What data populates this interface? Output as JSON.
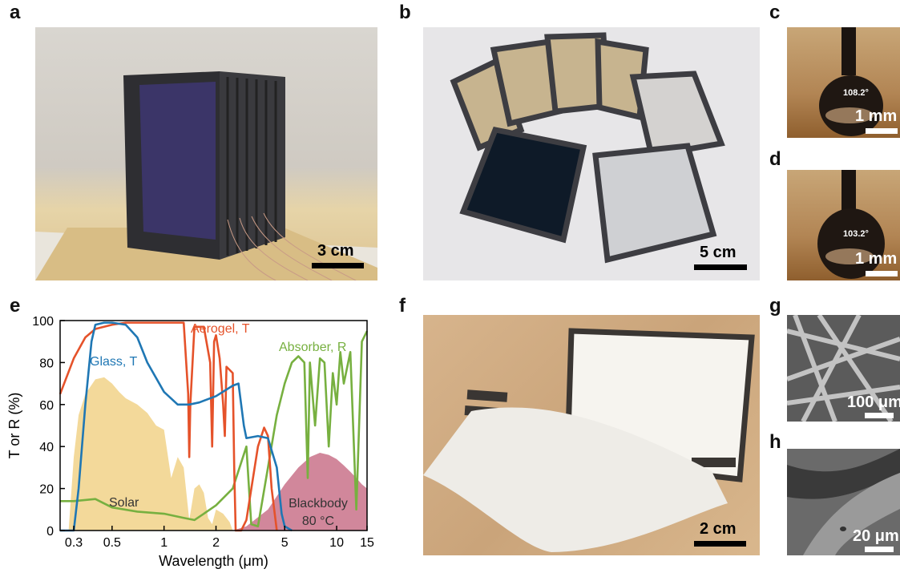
{
  "panels": {
    "a": {
      "letter": "a",
      "scale": "3 cm"
    },
    "b": {
      "letter": "b",
      "scale": "5 cm"
    },
    "c": {
      "letter": "c",
      "scale": "1 mm",
      "angle": "108.2°"
    },
    "d": {
      "letter": "d",
      "scale": "1 mm",
      "angle": "103.2°"
    },
    "e": {
      "letter": "e"
    },
    "f": {
      "letter": "f",
      "scale": "2 cm"
    },
    "g": {
      "letter": "g",
      "scale": "100 μm"
    },
    "h": {
      "letter": "h",
      "scale": "20 μm"
    }
  },
  "chart_data": {
    "type": "line",
    "xlabel": "Wavelength (μm)",
    "ylabel": "T or R (%)",
    "xscale": "log",
    "xlim": [
      0.25,
      15
    ],
    "ylim": [
      0,
      100
    ],
    "xticks": [
      0.3,
      0.5,
      1,
      2,
      5,
      10,
      15
    ],
    "yticks": [
      0,
      20,
      40,
      60,
      80,
      100
    ],
    "annotations": [
      "Glass, T",
      "Aerogel, T",
      "Absorber, R",
      "Solar",
      "Blackbody",
      "80 °C"
    ],
    "colors": {
      "glass": "#1f77b4",
      "aerogel": "#e5522a",
      "absorber": "#77b040",
      "solar": "#f2d795",
      "blackbody": "#c9728a"
    },
    "series": [
      {
        "name": "Glass, T",
        "x": [
          0.25,
          0.28,
          0.3,
          0.32,
          0.35,
          0.38,
          0.4,
          0.45,
          0.5,
          0.6,
          0.7,
          0.8,
          1.0,
          1.2,
          1.4,
          1.6,
          2.0,
          2.5,
          2.7,
          2.9,
          3.0,
          3.5,
          4.0,
          4.5,
          4.8,
          5.0,
          5.5
        ],
        "y": [
          0,
          0,
          0,
          20,
          60,
          90,
          98,
          99,
          99,
          98,
          92,
          80,
          66,
          60,
          60,
          61,
          64,
          69,
          70,
          50,
          44,
          45,
          44,
          30,
          8,
          2,
          0
        ]
      },
      {
        "name": "Aerogel, T",
        "x": [
          0.25,
          0.3,
          0.35,
          0.4,
          0.5,
          0.6,
          0.8,
          1.0,
          1.3,
          1.38,
          1.4,
          1.42,
          1.5,
          1.7,
          1.85,
          1.9,
          1.95,
          2.0,
          2.1,
          2.2,
          2.25,
          2.3,
          2.5,
          2.55,
          2.6,
          2.65,
          2.7,
          2.8,
          3.0,
          3.5,
          3.8,
          4.0,
          4.2,
          4.5
        ],
        "y": [
          65,
          82,
          92,
          96,
          98,
          99,
          99,
          99,
          99,
          65,
          35,
          60,
          97,
          97,
          80,
          40,
          90,
          93,
          82,
          60,
          45,
          78,
          75,
          30,
          0,
          0,
          0,
          0,
          5,
          40,
          49,
          45,
          20,
          0
        ]
      },
      {
        "name": "Absorber, R",
        "x": [
          0.25,
          0.3,
          0.4,
          0.5,
          0.7,
          1.0,
          1.3,
          1.5,
          1.7,
          2.0,
          2.5,
          3.0,
          3.2,
          3.5,
          4.0,
          4.5,
          5.0,
          5.5,
          6.0,
          6.5,
          6.8,
          7.0,
          7.5,
          8.0,
          8.5,
          9.0,
          9.5,
          10.0,
          10.5,
          11.0,
          12.0,
          13.0,
          14.0,
          15.0
        ],
        "y": [
          14,
          14,
          15,
          11,
          9,
          8,
          6,
          5,
          8,
          12,
          20,
          40,
          3,
          2,
          30,
          55,
          70,
          80,
          83,
          80,
          25,
          80,
          50,
          82,
          80,
          40,
          75,
          60,
          85,
          70,
          85,
          10,
          90,
          95
        ]
      }
    ],
    "areas": [
      {
        "name": "Solar",
        "x": [
          0.28,
          0.3,
          0.32,
          0.35,
          0.4,
          0.45,
          0.5,
          0.55,
          0.6,
          0.7,
          0.8,
          0.9,
          1.0,
          1.1,
          1.2,
          1.3,
          1.4,
          1.5,
          1.6,
          1.7,
          1.8,
          1.9,
          2.0,
          2.2,
          2.4,
          2.5
        ],
        "y": [
          0,
          35,
          55,
          65,
          72,
          73,
          70,
          66,
          63,
          60,
          56,
          50,
          48,
          25,
          35,
          30,
          5,
          20,
          22,
          18,
          6,
          3,
          10,
          8,
          4,
          0
        ]
      },
      {
        "name": "Blackbody",
        "x": [
          2.5,
          3,
          4,
          5,
          6,
          7,
          8,
          9,
          10,
          11,
          12,
          13,
          14,
          15
        ],
        "y": [
          0,
          2,
          10,
          22,
          30,
          35,
          37,
          36,
          34,
          31,
          28,
          25,
          22,
          20
        ]
      }
    ]
  }
}
